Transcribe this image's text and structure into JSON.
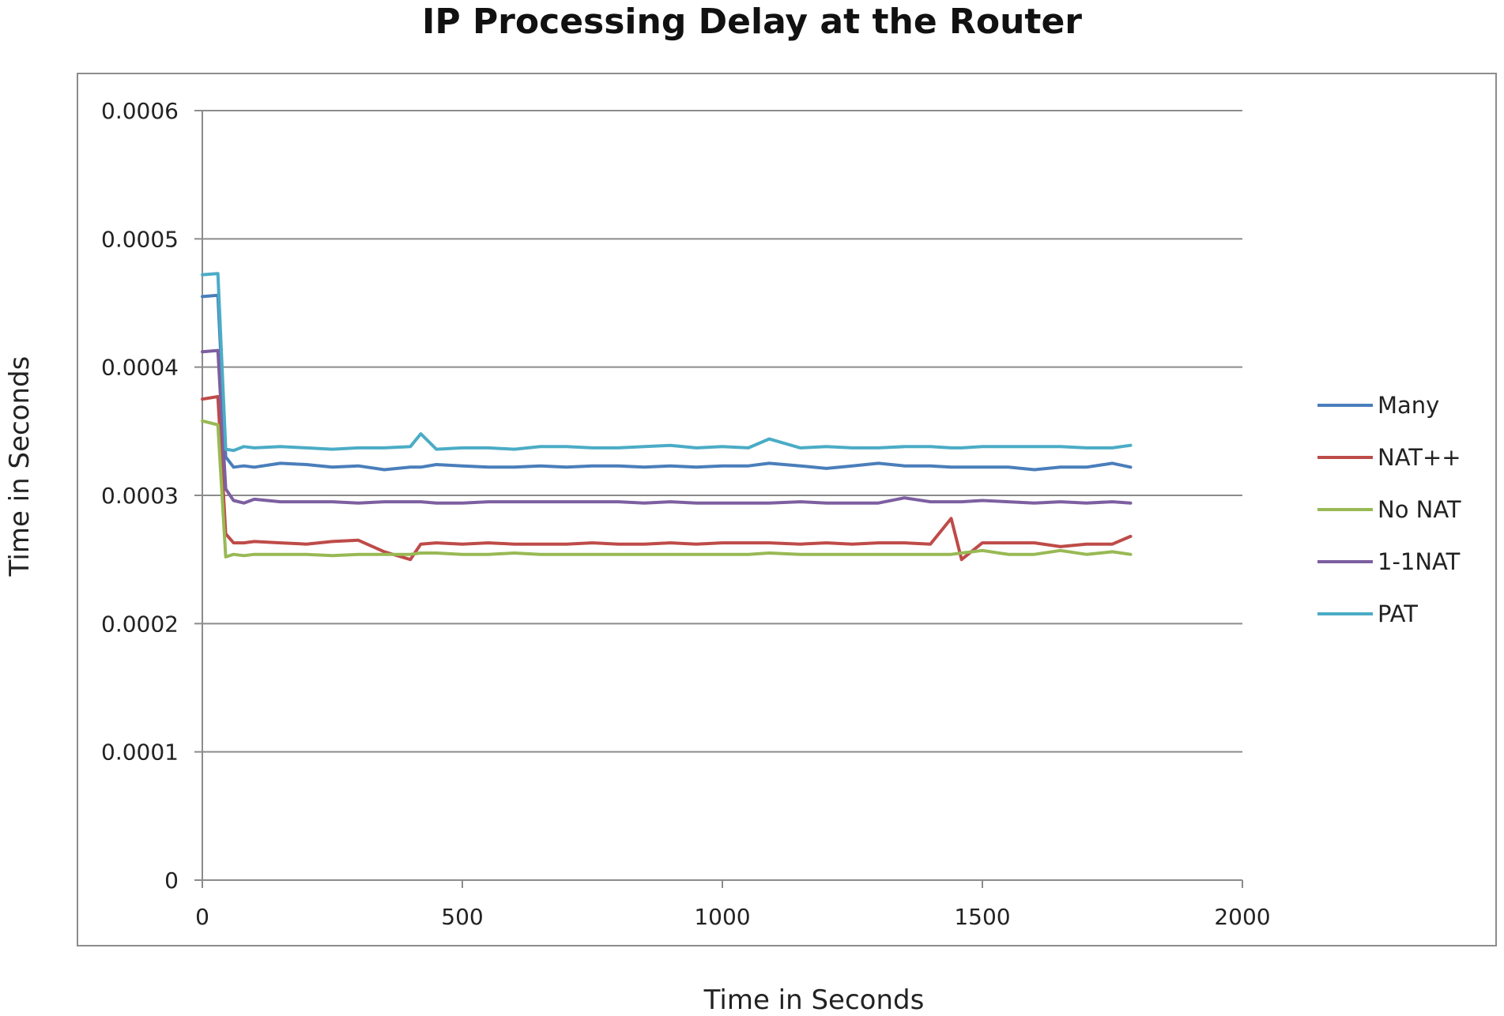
{
  "chart_data": {
    "type": "line",
    "title": "IP Processing Delay at the Router",
    "xlabel": "Time in Seconds",
    "ylabel": "Time in Seconds",
    "xlim": [
      0,
      2000
    ],
    "ylim": [
      0,
      0.0006
    ],
    "x_ticks": [
      "0",
      "500",
      "1000",
      "1500",
      "2000"
    ],
    "y_ticks": [
      "0",
      "0.0001",
      "0.0002",
      "0.0003",
      "0.0004",
      "0.0005",
      "0.0006"
    ],
    "grid": "horizontal",
    "legend_position": "right",
    "x": [
      0,
      30,
      45,
      60,
      80,
      100,
      150,
      200,
      250,
      300,
      350,
      400,
      420,
      450,
      500,
      550,
      600,
      650,
      700,
      750,
      800,
      850,
      900,
      950,
      1000,
      1050,
      1090,
      1150,
      1200,
      1250,
      1300,
      1350,
      1400,
      1440,
      1460,
      1500,
      1550,
      1600,
      1650,
      1700,
      1750,
      1785
    ],
    "series": [
      {
        "name": "Many",
        "color": "#4a7ebb",
        "values": [
          0.000455,
          0.000456,
          0.00033,
          0.000322,
          0.000323,
          0.000322,
          0.000325,
          0.000324,
          0.000322,
          0.000323,
          0.00032,
          0.000322,
          0.000322,
          0.000324,
          0.000323,
          0.000322,
          0.000322,
          0.000323,
          0.000322,
          0.000323,
          0.000323,
          0.000322,
          0.000323,
          0.000322,
          0.000323,
          0.000323,
          0.000325,
          0.000323,
          0.000321,
          0.000323,
          0.000325,
          0.000323,
          0.000323,
          0.000322,
          0.000322,
          0.000322,
          0.000322,
          0.00032,
          0.000322,
          0.000322,
          0.000325,
          0.000322
        ]
      },
      {
        "name": "NAT++",
        "color": "#be4b48",
        "values": [
          0.000375,
          0.000377,
          0.00027,
          0.000263,
          0.000263,
          0.000264,
          0.000263,
          0.000262,
          0.000264,
          0.000265,
          0.000256,
          0.00025,
          0.000262,
          0.000263,
          0.000262,
          0.000263,
          0.000262,
          0.000262,
          0.000262,
          0.000263,
          0.000262,
          0.000262,
          0.000263,
          0.000262,
          0.000263,
          0.000263,
          0.000263,
          0.000262,
          0.000263,
          0.000262,
          0.000263,
          0.000263,
          0.000262,
          0.000282,
          0.00025,
          0.000263,
          0.000263,
          0.000263,
          0.00026,
          0.000262,
          0.000262,
          0.000268
        ]
      },
      {
        "name": "No NAT",
        "color": "#98b954",
        "values": [
          0.000358,
          0.000355,
          0.000252,
          0.000254,
          0.000253,
          0.000254,
          0.000254,
          0.000254,
          0.000253,
          0.000254,
          0.000254,
          0.000254,
          0.000255,
          0.000255,
          0.000254,
          0.000254,
          0.000255,
          0.000254,
          0.000254,
          0.000254,
          0.000254,
          0.000254,
          0.000254,
          0.000254,
          0.000254,
          0.000254,
          0.000255,
          0.000254,
          0.000254,
          0.000254,
          0.000254,
          0.000254,
          0.000254,
          0.000254,
          0.000255,
          0.000257,
          0.000254,
          0.000254,
          0.000257,
          0.000254,
          0.000256,
          0.000254
        ]
      },
      {
        "name": "1-1NAT",
        "color": "#7d5fa0",
        "values": [
          0.000412,
          0.000413,
          0.000305,
          0.000296,
          0.000294,
          0.000297,
          0.000295,
          0.000295,
          0.000295,
          0.000294,
          0.000295,
          0.000295,
          0.000295,
          0.000294,
          0.000294,
          0.000295,
          0.000295,
          0.000295,
          0.000295,
          0.000295,
          0.000295,
          0.000294,
          0.000295,
          0.000294,
          0.000294,
          0.000294,
          0.000294,
          0.000295,
          0.000294,
          0.000294,
          0.000294,
          0.000298,
          0.000295,
          0.000295,
          0.000295,
          0.000296,
          0.000295,
          0.000294,
          0.000295,
          0.000294,
          0.000295,
          0.000294
        ]
      },
      {
        "name": "PAT",
        "color": "#4bacc6",
        "values": [
          0.000472,
          0.000473,
          0.000336,
          0.000335,
          0.000338,
          0.000337,
          0.000338,
          0.000337,
          0.000336,
          0.000337,
          0.000337,
          0.000338,
          0.000348,
          0.000336,
          0.000337,
          0.000337,
          0.000336,
          0.000338,
          0.000338,
          0.000337,
          0.000337,
          0.000338,
          0.000339,
          0.000337,
          0.000338,
          0.000337,
          0.000344,
          0.000337,
          0.000338,
          0.000337,
          0.000337,
          0.000338,
          0.000338,
          0.000337,
          0.000337,
          0.000338,
          0.000338,
          0.000338,
          0.000338,
          0.000337,
          0.000337,
          0.000339
        ]
      }
    ]
  }
}
